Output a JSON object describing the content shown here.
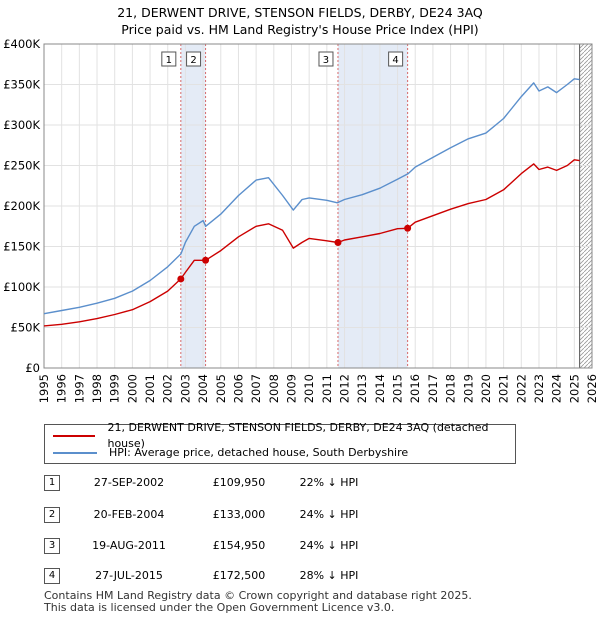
{
  "title_line1": "21, DERWENT DRIVE, STENSON FIELDS, DERBY, DE24 3AQ",
  "title_line2": "Price paid vs. HM Land Registry's House Price Index (HPI)",
  "colors": {
    "price_line": "#cc0000",
    "hpi_line": "#5b8fcc",
    "marker_band": "#dde6f4",
    "marker_line": "#d66a6a"
  },
  "legend": {
    "price_label": "21, DERWENT DRIVE, STENSON FIELDS, DERBY, DE24 3AQ (detached house)",
    "hpi_label": "HPI: Average price, detached house, South Derbyshire"
  },
  "transactions": [
    {
      "num": "1",
      "date": "27-SEP-2002",
      "price": "£109,950",
      "hpi": "22% ↓ HPI"
    },
    {
      "num": "2",
      "date": "20-FEB-2004",
      "price": "£133,000",
      "hpi": "24% ↓ HPI"
    },
    {
      "num": "3",
      "date": "19-AUG-2011",
      "price": "£154,950",
      "hpi": "24% ↓ HPI"
    },
    {
      "num": "4",
      "date": "27-JUL-2015",
      "price": "£172,500",
      "hpi": "28% ↓ HPI"
    }
  ],
  "footer_line1": "Contains HM Land Registry data © Crown copyright and database right 2025.",
  "footer_line2": "This data is licensed under the Open Government Licence v3.0.",
  "chart_data": {
    "type": "line",
    "title": "21, DERWENT DRIVE, STENSON FIELDS, DERBY, DE24 3AQ — Price paid vs. HM Land Registry's House Price Index (HPI)",
    "xlabel": "",
    "ylabel": "",
    "xlim": [
      1995,
      2026
    ],
    "ylim": [
      0,
      400000
    ],
    "x_ticks": [
      "1995",
      "1996",
      "1997",
      "1998",
      "1999",
      "2000",
      "2001",
      "2002",
      "2003",
      "2004",
      "2005",
      "2006",
      "2007",
      "2008",
      "2009",
      "2010",
      "2011",
      "2012",
      "2013",
      "2014",
      "2015",
      "2016",
      "2017",
      "2018",
      "2019",
      "2020",
      "2021",
      "2022",
      "2023",
      "2024",
      "2025",
      "2026"
    ],
    "y_ticks": [
      {
        "value": 0,
        "label": "£0"
      },
      {
        "value": 50000,
        "label": "£50K"
      },
      {
        "value": 100000,
        "label": "£100K"
      },
      {
        "value": 150000,
        "label": "£150K"
      },
      {
        "value": 200000,
        "label": "£200K"
      },
      {
        "value": 250000,
        "label": "£250K"
      },
      {
        "value": 300000,
        "label": "£300K"
      },
      {
        "value": 350000,
        "label": "£350K"
      },
      {
        "value": 400000,
        "label": "£400K"
      }
    ],
    "grid": true,
    "series": [
      {
        "name": "HPI: Average price, detached house, South Derbyshire",
        "x": [
          1995,
          1996,
          1997,
          1998,
          1999,
          2000,
          2001,
          2002,
          2002.75,
          2003,
          2003.5,
          2004,
          2004.15,
          2005,
          2006,
          2007,
          2007.7,
          2008.5,
          2009.1,
          2009.6,
          2010,
          2011,
          2011.6,
          2012,
          2013,
          2014,
          2015,
          2015.6,
          2016,
          2017,
          2018,
          2019,
          2020,
          2021,
          2022,
          2022.7,
          2023,
          2023.5,
          2024,
          2024.6,
          2025,
          2025.3
        ],
        "values": [
          67000,
          71000,
          75000,
          80000,
          86000,
          95000,
          108000,
          125000,
          141000,
          155000,
          175000,
          182000,
          175000,
          190000,
          213000,
          232000,
          235000,
          213000,
          195000,
          208000,
          210000,
          207000,
          204000,
          208000,
          214000,
          222000,
          233000,
          240000,
          248000,
          260000,
          272000,
          283000,
          290000,
          308000,
          335000,
          352000,
          342000,
          347000,
          340000,
          350000,
          357000,
          356000
        ]
      },
      {
        "name": "21, DERWENT DRIVE, STENSON FIELDS, DERBY, DE24 3AQ (detached house)",
        "x": [
          1995,
          1996,
          1997,
          1998,
          1999,
          2000,
          2001,
          2002,
          2002.74,
          2003,
          2003.5,
          2004.14,
          2005,
          2006,
          2007,
          2007.7,
          2008.5,
          2009.1,
          2009.6,
          2010,
          2011,
          2011.63,
          2012,
          2013,
          2014,
          2015,
          2015.57,
          2016,
          2017,
          2018,
          2019,
          2020,
          2021,
          2022,
          2022.7,
          2023,
          2023.5,
          2024,
          2024.6,
          2025,
          2025.3
        ],
        "values": [
          52000,
          54000,
          57000,
          61000,
          66000,
          72000,
          82000,
          95000,
          109950,
          118000,
          133000,
          133000,
          145000,
          162000,
          175000,
          178000,
          170000,
          148000,
          155000,
          160000,
          157000,
          154950,
          158000,
          162000,
          166000,
          172000,
          172500,
          180000,
          188000,
          196000,
          203000,
          208000,
          220000,
          240000,
          252000,
          245000,
          248000,
          244000,
          250000,
          257000,
          256000
        ]
      }
    ],
    "transactions": [
      {
        "label": "1",
        "x": 2002.74,
        "value": 109950
      },
      {
        "label": "2",
        "x": 2004.14,
        "value": 133000
      },
      {
        "label": "3",
        "x": 2011.63,
        "value": 154950
      },
      {
        "label": "4",
        "x": 2015.57,
        "value": 172500
      }
    ],
    "bands": [
      [
        2002.74,
        2004.14
      ],
      [
        2011.63,
        2015.57
      ]
    ],
    "latest_data_marker": 2025.3
  }
}
